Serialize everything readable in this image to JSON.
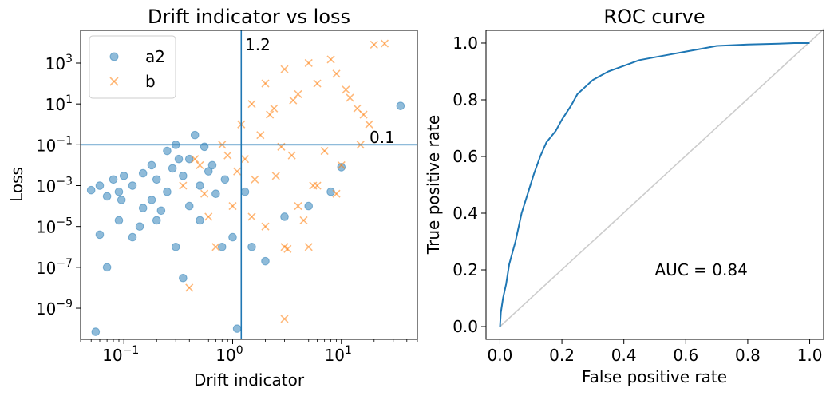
{
  "chart_data": [
    {
      "type": "scatter",
      "title": "Drift indicator vs loss",
      "xlabel": "Drift indicator",
      "ylabel": "Loss",
      "xscale": "log",
      "yscale": "log",
      "xlim": [
        0.04,
        50
      ],
      "ylim": [
        3e-11,
        40000
      ],
      "xticks": [
        {
          "value": 0.1,
          "base": "10",
          "exp": "−1"
        },
        {
          "value": 1,
          "base": "10",
          "exp": "0"
        },
        {
          "value": 10,
          "base": "10",
          "exp": "1"
        }
      ],
      "yticks": [
        {
          "value": 1e-09,
          "base": "10",
          "exp": "−9"
        },
        {
          "value": 1e-07,
          "base": "10",
          "exp": "−7"
        },
        {
          "value": 1e-05,
          "base": "10",
          "exp": "−5"
        },
        {
          "value": 0.001,
          "base": "10",
          "exp": "−3"
        },
        {
          "value": 0.1,
          "base": "10",
          "exp": "−1"
        },
        {
          "value": 10,
          "base": "10",
          "exp": "1"
        },
        {
          "value": 1000,
          "base": "10",
          "exp": "3"
        }
      ],
      "threshold_lines": {
        "vertical": {
          "value": 1.2,
          "label": "1.2"
        },
        "horizontal": {
          "value": 0.1,
          "label": "0.1"
        }
      },
      "legend": {
        "position": "top-left",
        "entries": [
          {
            "name": "a2",
            "marker": "circle",
            "color": "#1f77b4"
          },
          {
            "name": "b",
            "marker": "x",
            "color": "#ff7f0e"
          }
        ]
      },
      "series": [
        {
          "name": "a2",
          "color": "#1f77b4",
          "points": [
            [
              0.05,
              0.0006
            ],
            [
              0.06,
              0.001
            ],
            [
              0.07,
              0.0003
            ],
            [
              0.08,
              0.002
            ],
            [
              0.09,
              0.0005
            ],
            [
              0.1,
              0.003
            ],
            [
              0.12,
              0.001
            ],
            [
              0.15,
              0.004
            ],
            [
              0.18,
              0.01
            ],
            [
              0.2,
              0.002
            ],
            [
              0.25,
              0.05
            ],
            [
              0.3,
              0.1
            ],
            [
              0.35,
              0.003
            ],
            [
              0.4,
              0.02
            ],
            [
              0.5,
              0.001
            ],
            [
              0.6,
              0.005
            ],
            [
              0.07,
              1e-07
            ],
            [
              0.12,
              3e-06
            ],
            [
              0.2,
              2e-05
            ],
            [
              0.3,
              1e-06
            ],
            [
              0.35,
              3e-08
            ],
            [
              0.5,
              2e-05
            ],
            [
              0.8,
              1e-06
            ],
            [
              1.0,
              3e-06
            ],
            [
              1.1,
              1e-10
            ],
            [
              0.055,
              7e-11
            ],
            [
              0.06,
              4e-06
            ],
            [
              0.09,
              2e-05
            ],
            [
              0.15,
              8e-05
            ],
            [
              0.25,
              0.0005
            ],
            [
              0.4,
              0.0001
            ],
            [
              0.7,
              0.0004
            ],
            [
              1.5,
              1e-06
            ],
            [
              2.0,
              2e-07
            ],
            [
              3.0,
              3e-05
            ],
            [
              5.0,
              0.0001
            ],
            [
              8.0,
              0.0005
            ],
            [
              10.0,
              0.008
            ],
            [
              35.0,
              8
            ],
            [
              0.45,
              0.3
            ],
            [
              0.55,
              0.08
            ],
            [
              0.65,
              0.01
            ],
            [
              0.85,
              0.002
            ],
            [
              1.3,
              0.0005
            ],
            [
              0.28,
              0.007
            ],
            [
              0.18,
              0.0002
            ],
            [
              0.22,
              6e-05
            ],
            [
              0.14,
              1e-05
            ],
            [
              0.095,
              0.0002
            ],
            [
              0.32,
              0.02
            ]
          ]
        },
        {
          "name": "b",
          "color": "#ff7f0e",
          "points": [
            [
              0.35,
              0.001
            ],
            [
              0.5,
              0.01
            ],
            [
              0.8,
              0.1
            ],
            [
              1.2,
              1
            ],
            [
              1.5,
              10
            ],
            [
              2.0,
              100
            ],
            [
              3.0,
              500
            ],
            [
              5.0,
              1000
            ],
            [
              8.0,
              1500
            ],
            [
              20.0,
              8000
            ],
            [
              25.0,
              9000
            ],
            [
              1.0,
              0.0001
            ],
            [
              2.0,
              1e-05
            ],
            [
              3.0,
              1e-06
            ],
            [
              4.0,
              0.0001
            ],
            [
              6.0,
              0.001
            ],
            [
              10.0,
              0.01
            ],
            [
              15.0,
              0.1
            ],
            [
              18.0,
              1
            ],
            [
              3.0,
              3e-10
            ],
            [
              0.4,
              1e-08
            ],
            [
              5.0,
              1e-06
            ],
            [
              1.5,
              3e-05
            ],
            [
              2.5,
              0.003
            ],
            [
              3.5,
              0.03
            ],
            [
              0.6,
              3e-05
            ],
            [
              0.7,
              1e-06
            ],
            [
              1.8,
              0.3
            ],
            [
              2.2,
              3
            ],
            [
              4.0,
              30
            ],
            [
              6.0,
              100
            ],
            [
              9.0,
              300
            ],
            [
              12.0,
              20
            ],
            [
              16.0,
              3
            ],
            [
              7.0,
              0.05
            ],
            [
              0.45,
              0.02
            ],
            [
              1.1,
              0.005
            ],
            [
              1.3,
              0.02
            ],
            [
              2.8,
              0.08
            ],
            [
              5.5,
              0.001
            ],
            [
              9.0,
              0.0004
            ],
            [
              4.5,
              2e-05
            ],
            [
              3.2,
              8e-07
            ],
            [
              1.6,
              0.002
            ],
            [
              0.9,
              0.03
            ],
            [
              2.4,
              6
            ],
            [
              3.6,
              15
            ],
            [
              11.0,
              50
            ],
            [
              14.0,
              6
            ],
            [
              0.55,
              0.0004
            ]
          ]
        }
      ]
    },
    {
      "type": "line",
      "title": "ROC curve",
      "xlabel": "False positive rate",
      "ylabel": "True positive rate",
      "xlim": [
        -0.045,
        1.045
      ],
      "ylim": [
        -0.045,
        1.045
      ],
      "xticks": [
        "0.0",
        "0.2",
        "0.4",
        "0.6",
        "0.8",
        "1.0"
      ],
      "yticks": [
        "0.0",
        "0.2",
        "0.4",
        "0.6",
        "0.8",
        "1.0"
      ],
      "annotation": "AUC = 0.84",
      "annotation_at": [
        0.5,
        0.2
      ],
      "diagonal": {
        "color": "#cccccc",
        "points": [
          [
            0,
            0
          ],
          [
            1,
            1
          ]
        ]
      },
      "series": [
        {
          "name": "ROC",
          "color": "#1f77b4",
          "x": [
            0,
            0.003,
            0.01,
            0.02,
            0.03,
            0.05,
            0.07,
            0.09,
            0.11,
            0.13,
            0.15,
            0.18,
            0.2,
            0.23,
            0.25,
            0.28,
            0.3,
            0.35,
            0.4,
            0.45,
            0.5,
            0.55,
            0.6,
            0.65,
            0.7,
            0.8,
            0.9,
            0.95,
            1.0
          ],
          "y": [
            0,
            0.05,
            0.1,
            0.15,
            0.22,
            0.3,
            0.4,
            0.47,
            0.54,
            0.6,
            0.65,
            0.69,
            0.73,
            0.78,
            0.82,
            0.85,
            0.87,
            0.9,
            0.92,
            0.94,
            0.95,
            0.96,
            0.97,
            0.98,
            0.99,
            0.995,
            0.998,
            1.0,
            1.0
          ]
        }
      ]
    }
  ]
}
